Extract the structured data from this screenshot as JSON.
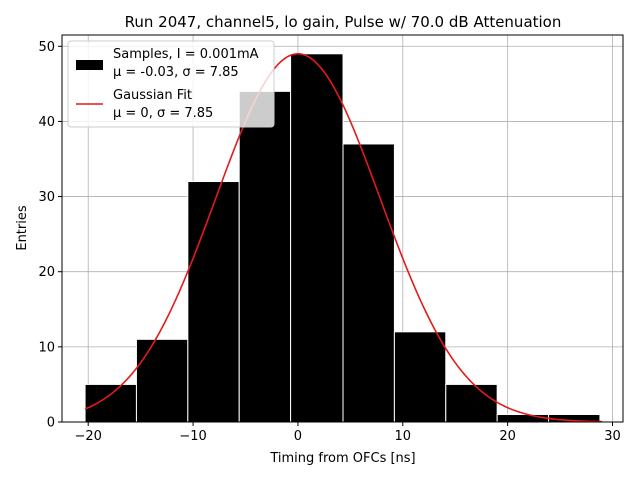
{
  "chart_data": {
    "type": "bar",
    "title": "Run 2047, channel5, lo gain, Pulse w/ 70.0 dB Attenuation",
    "xlabel": "Timing from OFCs [ns]",
    "ylabel": "Entries",
    "xlim": [
      -22.5,
      31
    ],
    "ylim": [
      0,
      51.5
    ],
    "xticks": [
      -20,
      -10,
      0,
      10,
      20,
      30
    ],
    "yticks": [
      0,
      10,
      20,
      30,
      40,
      50
    ],
    "grid": true,
    "legend_position": "top-left",
    "bins": [
      {
        "x0": -20.3,
        "x1": -15.4,
        "value": 5
      },
      {
        "x0": -15.4,
        "x1": -10.5,
        "value": 11
      },
      {
        "x0": -10.5,
        "x1": -5.6,
        "value": 32
      },
      {
        "x0": -5.6,
        "x1": -0.7,
        "value": 44
      },
      {
        "x0": -0.7,
        "x1": 4.3,
        "value": 49
      },
      {
        "x0": 4.3,
        "x1": 9.2,
        "value": 37
      },
      {
        "x0": 9.2,
        "x1": 14.1,
        "value": 12
      },
      {
        "x0": 14.1,
        "x1": 19.0,
        "value": 5
      },
      {
        "x0": 19.0,
        "x1": 23.9,
        "value": 1
      },
      {
        "x0": 23.9,
        "x1": 28.8,
        "value": 1
      }
    ],
    "fit": {
      "mu": 0,
      "sigma": 7.85,
      "amplitude": 49,
      "x_range": [
        -20.3,
        29
      ],
      "color": "#e41a1c"
    },
    "hist_color": "#000000",
    "legend": [
      {
        "line1": "Samples, I = 0.001mA",
        "line2": "μ = -0.03, σ = 7.85",
        "kind": "patch"
      },
      {
        "line1": "Gaussian Fit",
        "line2": "μ = 0, σ = 7.85",
        "kind": "line"
      }
    ]
  }
}
